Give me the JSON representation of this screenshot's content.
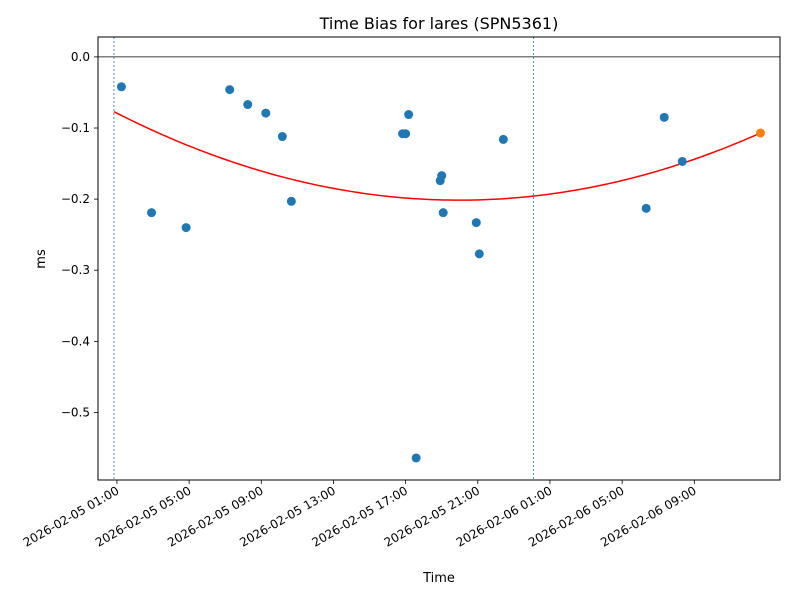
{
  "chart_data": {
    "type": "scatter",
    "title": "Time Bias for lares (SPN5361)",
    "xlabel": "Time",
    "ylabel": "ms",
    "xlim": [
      "2026-02-04T23:57",
      "2026-02-06T13:45"
    ],
    "ylim": [
      -0.595,
      0.028
    ],
    "x_ticks": [
      {
        "t": "2026-02-05T01:00",
        "label": "2026-02-05 01:00"
      },
      {
        "t": "2026-02-05T05:00",
        "label": "2026-02-05 05:00"
      },
      {
        "t": "2026-02-05T09:00",
        "label": "2026-02-05 09:00"
      },
      {
        "t": "2026-02-05T13:00",
        "label": "2026-02-05 13:00"
      },
      {
        "t": "2026-02-05T17:00",
        "label": "2026-02-05 17:00"
      },
      {
        "t": "2026-02-05T21:00",
        "label": "2026-02-05 21:00"
      },
      {
        "t": "2026-02-06T01:00",
        "label": "2026-02-06 01:00"
      },
      {
        "t": "2026-02-06T05:00",
        "label": "2026-02-06 05:00"
      },
      {
        "t": "2026-02-06T09:00",
        "label": "2026-02-06 09:00"
      }
    ],
    "y_ticks": [
      {
        "v": 0.0,
        "label": "0.0"
      },
      {
        "v": -0.1,
        "label": "−0.1"
      },
      {
        "v": -0.2,
        "label": "−0.2"
      },
      {
        "v": -0.3,
        "label": "−0.3"
      },
      {
        "v": -0.4,
        "label": "−0.4"
      },
      {
        "v": -0.5,
        "label": "−0.5"
      }
    ],
    "zero_line": 0.0,
    "vertical_lines": [
      "2026-02-05T00:50",
      "2026-02-06T00:05"
    ],
    "points": [
      {
        "t": "2026-02-05T01:15",
        "v": -0.042
      },
      {
        "t": "2026-02-05T02:55",
        "v": -0.219
      },
      {
        "t": "2026-02-05T04:50",
        "v": -0.24
      },
      {
        "t": "2026-02-05T07:15",
        "v": -0.046
      },
      {
        "t": "2026-02-05T08:15",
        "v": -0.067
      },
      {
        "t": "2026-02-05T09:15",
        "v": -0.079
      },
      {
        "t": "2026-02-05T10:10",
        "v": -0.112
      },
      {
        "t": "2026-02-05T10:40",
        "v": -0.203
      },
      {
        "t": "2026-02-05T16:50",
        "v": -0.108
      },
      {
        "t": "2026-02-05T17:00",
        "v": -0.108
      },
      {
        "t": "2026-02-05T17:10",
        "v": -0.081
      },
      {
        "t": "2026-02-05T17:35",
        "v": -0.564
      },
      {
        "t": "2026-02-05T18:55",
        "v": -0.174
      },
      {
        "t": "2026-02-05T19:00",
        "v": -0.167
      },
      {
        "t": "2026-02-05T19:05",
        "v": -0.219
      },
      {
        "t": "2026-02-05T20:55",
        "v": -0.233
      },
      {
        "t": "2026-02-05T21:05",
        "v": -0.277
      },
      {
        "t": "2026-02-05T22:25",
        "v": -0.116
      },
      {
        "t": "2026-02-06T06:20",
        "v": -0.213
      },
      {
        "t": "2026-02-06T07:20",
        "v": -0.085
      },
      {
        "t": "2026-02-06T08:20",
        "v": -0.147
      }
    ],
    "highlight_point": {
      "t": "2026-02-06T12:40",
      "v": -0.107
    },
    "fit_curve": {
      "type": "quadratic",
      "points": [
        {
          "t": "2026-02-05T00:50",
          "v": -0.077
        },
        {
          "t": "2026-02-05T18:50",
          "v": -0.201
        },
        {
          "t": "2026-02-06T12:40",
          "v": -0.107
        }
      ]
    },
    "colors": {
      "points": "#1f77b4",
      "highlight": "#ff7f0e",
      "fit": "#ff0000",
      "vertical_lines": "#1f77b4",
      "zero_line": "#000000"
    },
    "grid": false
  }
}
